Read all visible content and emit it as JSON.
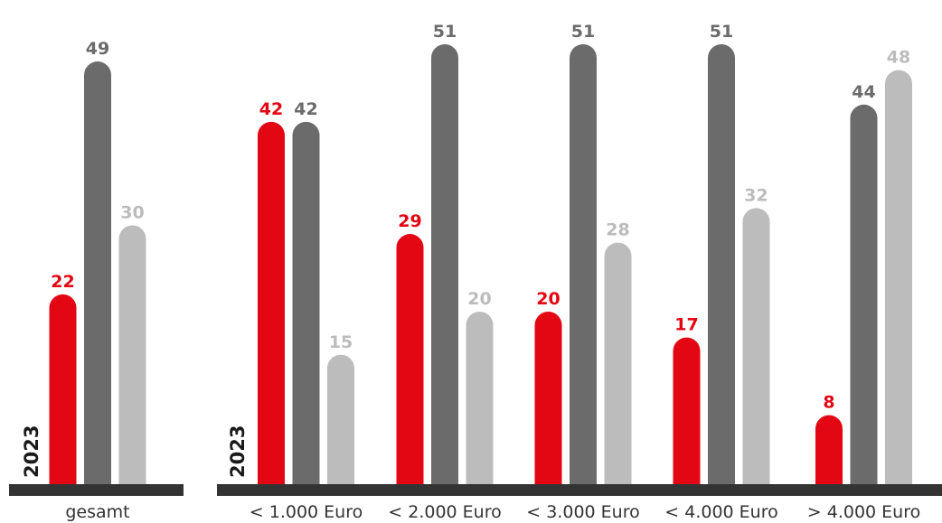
{
  "chart_data": [
    {
      "type": "bar",
      "year_label": "2023",
      "categories": [
        "gesamt"
      ],
      "series": [
        {
          "values": [
            22
          ],
          "color": "#e30613"
        },
        {
          "values": [
            49
          ],
          "color": "#6b6b6b"
        },
        {
          "values": [
            30
          ],
          "color": "#bcbcbc"
        }
      ],
      "ylim": [
        0,
        52
      ],
      "grid": false,
      "value_labels": true
    },
    {
      "type": "bar",
      "year_label": "2023",
      "categories": [
        "< 1.000 Euro",
        "< 2.000 Euro",
        "< 3.000 Euro",
        "< 4.000 Euro",
        "> 4.000 Euro"
      ],
      "series": [
        {
          "values": [
            42,
            29,
            20,
            17,
            8
          ],
          "color": "#e30613"
        },
        {
          "values": [
            42,
            51,
            51,
            51,
            44
          ],
          "color": "#6b6b6b"
        },
        {
          "values": [
            15,
            20,
            28,
            32,
            48
          ],
          "color": "#bcbcbc"
        }
      ],
      "ylim": [
        0,
        52
      ],
      "grid": false,
      "value_labels": true
    }
  ]
}
